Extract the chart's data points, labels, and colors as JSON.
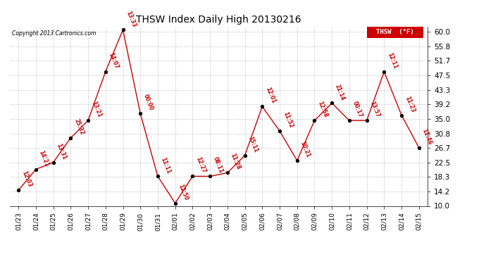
{
  "title": "THSW Index Daily High 20130216",
  "copyright": "Copyright 2013 Cartronics.com",
  "legend_label": "THSW  (°F)",
  "x_labels": [
    "01/23",
    "01/24",
    "01/25",
    "01/26",
    "01/27",
    "01/28",
    "01/29",
    "01/30",
    "01/31",
    "02/01",
    "02/02",
    "02/03",
    "02/04",
    "02/05",
    "02/06",
    "02/07",
    "02/08",
    "02/09",
    "02/10",
    "02/11",
    "02/12",
    "02/13",
    "02/14",
    "02/15"
  ],
  "y_values": [
    14.5,
    20.5,
    22.5,
    29.5,
    34.5,
    48.5,
    60.5,
    36.5,
    18.5,
    10.8,
    18.5,
    18.5,
    19.5,
    24.5,
    38.5,
    31.5,
    23.0,
    34.5,
    39.5,
    34.5,
    34.5,
    48.5,
    36.0,
    26.7
  ],
  "point_labels": [
    "12:03",
    "14:21",
    "13:31",
    "25:32",
    "13:21",
    "14:07",
    "13:33",
    "00:00",
    "11:11",
    "12:50",
    "12:27",
    "08:11",
    "11:28",
    "15:11",
    "12:01",
    "11:52",
    "10:21",
    "12:58",
    "21:14",
    "00:17",
    "13:57",
    "12:11",
    "11:23",
    "11:46"
  ],
  "line_color": "#cc0000",
  "marker_color": "#000000",
  "bg_color": "#ffffff",
  "grid_color": "#c8c8c8",
  "ylim": [
    10.0,
    61.5
  ],
  "yticks": [
    10.0,
    14.2,
    18.3,
    22.5,
    26.7,
    30.8,
    35.0,
    39.2,
    43.3,
    47.5,
    51.7,
    55.8,
    60.0
  ],
  "figwidth": 6.9,
  "figheight": 3.75,
  "dpi": 100
}
